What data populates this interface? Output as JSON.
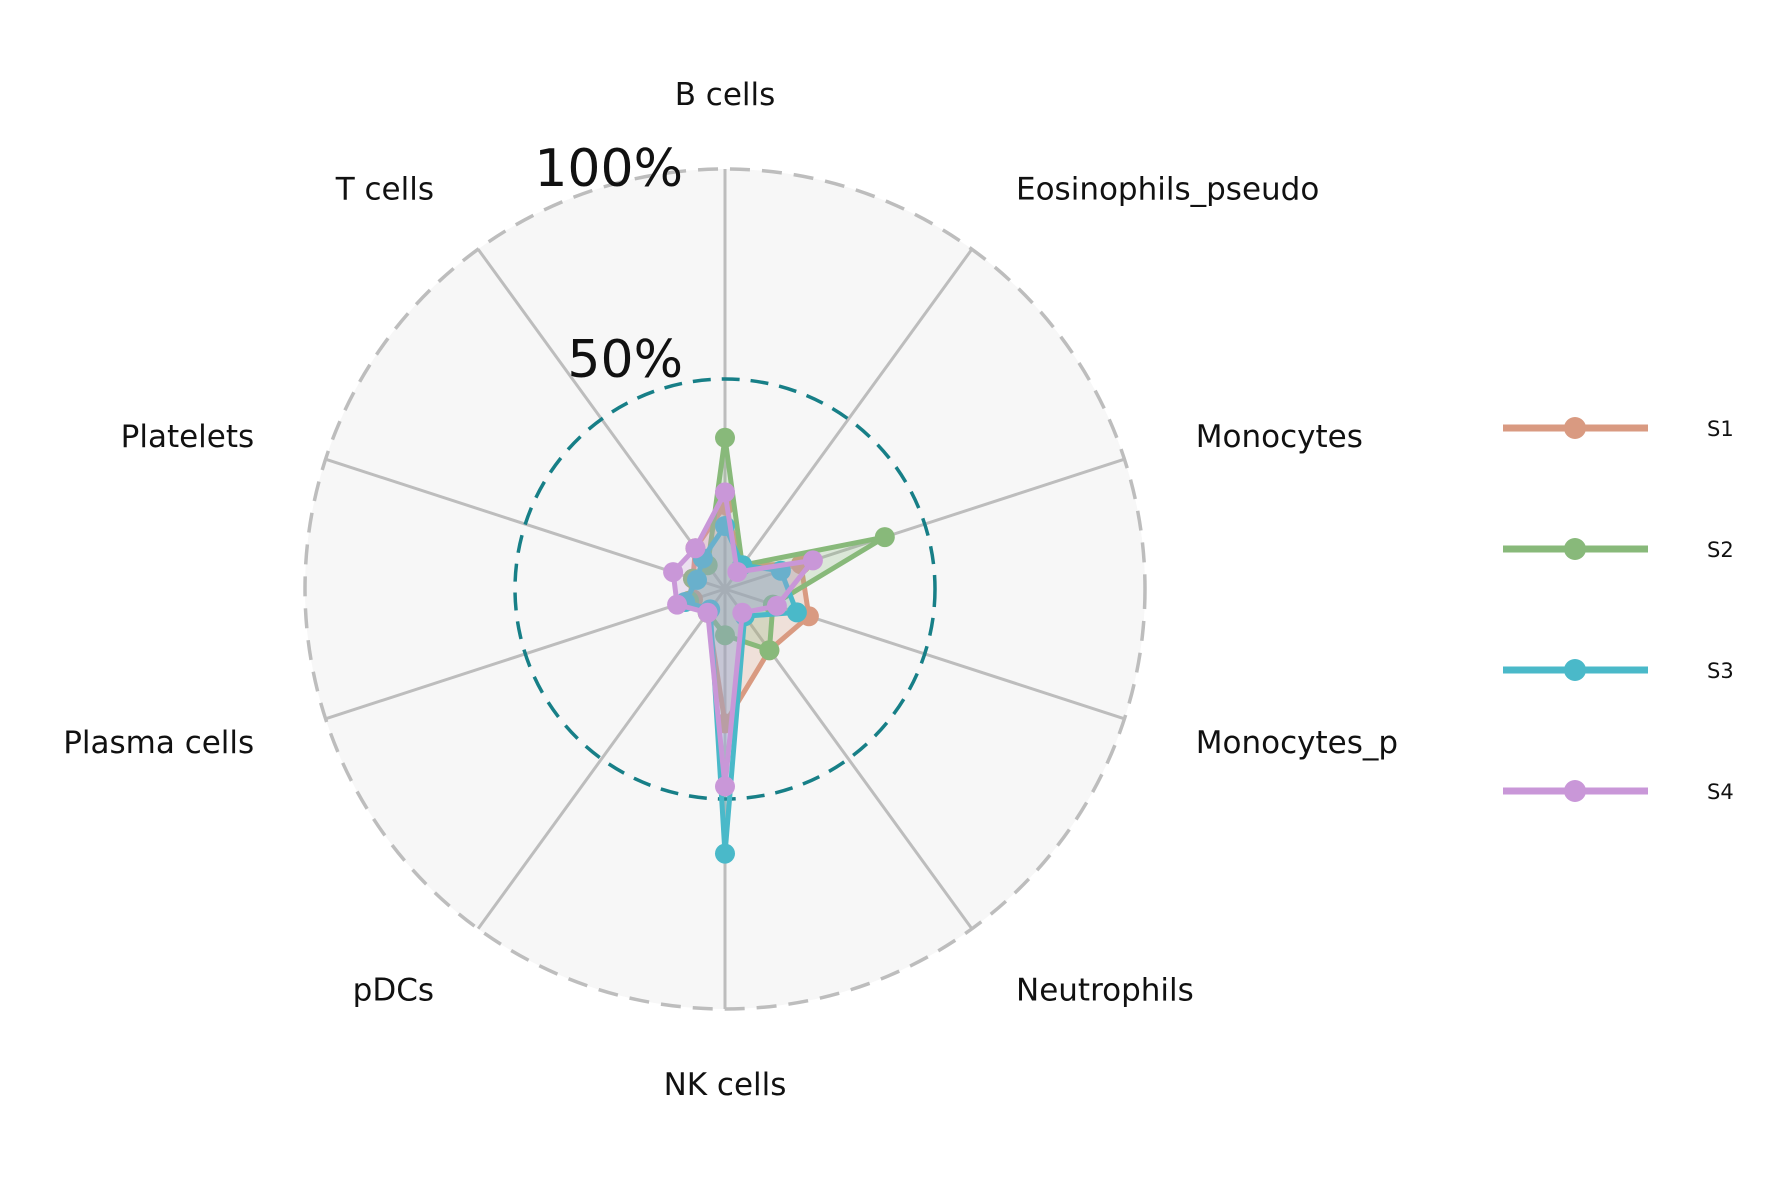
{
  "chart_data": {
    "type": "radar",
    "axes": [
      "B cells",
      "Eosinophils_pseudo",
      "Monocytes",
      "Monocytes_p",
      "Neutrophils",
      "NK cells",
      "pDCs",
      "Plasma cells",
      "Platelets",
      "T cells"
    ],
    "ring_labels": [
      "100%",
      "50%"
    ],
    "rlim": [
      0,
      100
    ],
    "reference_ring": 50,
    "series": [
      {
        "name": "S1",
        "color": "#d99a81",
        "values": [
          20,
          7,
          19,
          21,
          18,
          32,
          7,
          8,
          8,
          12
        ]
      },
      {
        "name": "S2",
        "color": "#88b97a",
        "values": [
          36,
          7,
          40,
          12,
          18,
          11,
          7,
          9,
          8,
          7
        ]
      },
      {
        "name": "S3",
        "color": "#4ab9c9",
        "values": [
          15,
          7,
          14,
          18,
          8,
          63,
          6,
          10,
          7,
          9
        ]
      },
      {
        "name": "S4",
        "color": "#c997d8",
        "values": [
          23,
          5,
          22,
          13,
          7,
          47,
          7,
          12,
          13,
          12
        ]
      }
    ],
    "legend_position": "right",
    "grid": true
  }
}
